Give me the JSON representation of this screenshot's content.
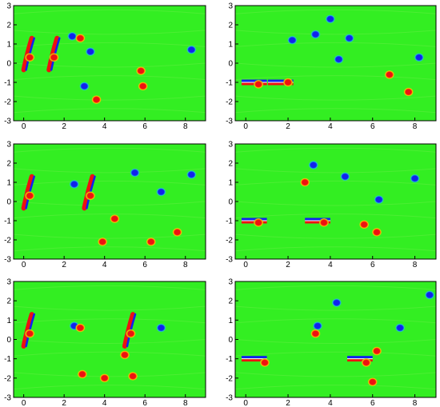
{
  "figure": {
    "panel_count": 6,
    "field_colors": {
      "background": "#33ee22",
      "positive_core": "#ee1111",
      "positive_edge": "#ffcc00",
      "negative_core": "#1122ee",
      "negative_edge": "#22cccc"
    },
    "x_tick_labels": [
      "0",
      "2",
      "4",
      "6",
      "8"
    ],
    "y_tick_labels": [
      "3",
      "2",
      "1",
      "0",
      "-1",
      "-2",
      "-3"
    ]
  },
  "chart_data": [
    {
      "type": "heatmap",
      "panel": "row1-left",
      "xlim": [
        -0.5,
        9
      ],
      "ylim": [
        -3,
        3
      ],
      "xticks": [
        0,
        2,
        4,
        6,
        8
      ],
      "yticks": [
        -3,
        -2,
        -1,
        0,
        1,
        2,
        3
      ],
      "plate_x": [
        0,
        1.25
      ],
      "vortices": [
        {
          "x": 0.3,
          "y": 0.3,
          "strength": 1
        },
        {
          "x": 1.5,
          "y": 0.3,
          "strength": 1
        },
        {
          "x": 2.4,
          "y": 1.4,
          "strength": -1
        },
        {
          "x": 2.8,
          "y": 1.3,
          "strength": 1
        },
        {
          "x": 3.3,
          "y": 0.6,
          "strength": -1
        },
        {
          "x": 3.0,
          "y": -1.2,
          "strength": -1
        },
        {
          "x": 3.6,
          "y": -1.9,
          "strength": 1
        },
        {
          "x": 5.8,
          "y": -0.4,
          "strength": 1
        },
        {
          "x": 5.9,
          "y": -1.2,
          "strength": 1
        },
        {
          "x": 8.3,
          "y": 0.7,
          "strength": -1
        }
      ]
    },
    {
      "type": "heatmap",
      "panel": "row1-right",
      "xlim": [
        -0.5,
        9
      ],
      "ylim": [
        -3,
        3
      ],
      "xticks": [
        0,
        2,
        4,
        6,
        8
      ],
      "yticks": [
        -3,
        -2,
        -1,
        0,
        1,
        2,
        3
      ],
      "plate_x": [
        0,
        1.25
      ],
      "vortices": [
        {
          "x": 0.6,
          "y": -1.1,
          "strength": 1
        },
        {
          "x": 2.0,
          "y": -1.0,
          "strength": 1
        },
        {
          "x": 2.2,
          "y": 1.2,
          "strength": -1
        },
        {
          "x": 3.3,
          "y": 1.5,
          "strength": -1
        },
        {
          "x": 4.0,
          "y": 2.3,
          "strength": -1
        },
        {
          "x": 4.4,
          "y": 0.2,
          "strength": -1
        },
        {
          "x": 4.9,
          "y": 1.3,
          "strength": -1
        },
        {
          "x": 6.8,
          "y": -0.6,
          "strength": 1
        },
        {
          "x": 7.7,
          "y": -1.5,
          "strength": 1
        },
        {
          "x": 8.2,
          "y": 0.3,
          "strength": -1
        }
      ]
    },
    {
      "type": "heatmap",
      "panel": "row2-left",
      "xlim": [
        -0.5,
        9
      ],
      "ylim": [
        -3,
        3
      ],
      "xticks": [
        0,
        2,
        4,
        6,
        8
      ],
      "yticks": [
        -3,
        -2,
        -1,
        0,
        1,
        2,
        3
      ],
      "plate_x": [
        0,
        3
      ],
      "vortices": [
        {
          "x": 0.3,
          "y": 0.3,
          "strength": 1
        },
        {
          "x": 3.3,
          "y": 0.3,
          "strength": 1
        },
        {
          "x": 2.5,
          "y": 0.9,
          "strength": -1
        },
        {
          "x": 5.5,
          "y": 1.5,
          "strength": -1
        },
        {
          "x": 4.5,
          "y": -0.9,
          "strength": 1
        },
        {
          "x": 3.9,
          "y": -2.1,
          "strength": 1
        },
        {
          "x": 6.3,
          "y": -2.1,
          "strength": 1
        },
        {
          "x": 6.8,
          "y": 0.5,
          "strength": -1
        },
        {
          "x": 8.3,
          "y": 1.4,
          "strength": -1
        },
        {
          "x": 7.6,
          "y": -1.6,
          "strength": 1
        }
      ]
    },
    {
      "type": "heatmap",
      "panel": "row2-right",
      "xlim": [
        -0.5,
        9
      ],
      "ylim": [
        -3,
        3
      ],
      "xticks": [
        0,
        2,
        4,
        6,
        8
      ],
      "yticks": [
        -3,
        -2,
        -1,
        0,
        1,
        2,
        3
      ],
      "plate_x": [
        0,
        3
      ],
      "vortices": [
        {
          "x": 0.6,
          "y": -1.1,
          "strength": 1
        },
        {
          "x": 3.7,
          "y": -1.1,
          "strength": 1
        },
        {
          "x": 2.8,
          "y": 1.0,
          "strength": 1
        },
        {
          "x": 5.6,
          "y": -1.2,
          "strength": 1
        },
        {
          "x": 3.2,
          "y": 1.9,
          "strength": -1
        },
        {
          "x": 4.7,
          "y": 1.3,
          "strength": -1
        },
        {
          "x": 6.3,
          "y": 0.1,
          "strength": -1
        },
        {
          "x": 8.0,
          "y": 1.2,
          "strength": -1
        },
        {
          "x": 6.2,
          "y": -1.6,
          "strength": 1
        }
      ]
    },
    {
      "type": "heatmap",
      "panel": "row3-left",
      "xlim": [
        -0.5,
        9
      ],
      "ylim": [
        -3,
        3
      ],
      "xticks": [
        0,
        2,
        4,
        6,
        8
      ],
      "yticks": [
        -3,
        -2,
        -1,
        0,
        1,
        2,
        3
      ],
      "plate_x": [
        0,
        5
      ],
      "vortices": [
        {
          "x": 0.3,
          "y": 0.3,
          "strength": 1
        },
        {
          "x": 5.3,
          "y": 0.3,
          "strength": 1
        },
        {
          "x": 2.5,
          "y": 0.7,
          "strength": -1
        },
        {
          "x": 2.8,
          "y": 0.6,
          "strength": 1
        },
        {
          "x": 5.0,
          "y": -0.8,
          "strength": 1
        },
        {
          "x": 6.8,
          "y": 0.6,
          "strength": -1
        },
        {
          "x": 4.0,
          "y": -2.0,
          "strength": 1
        },
        {
          "x": 5.4,
          "y": -1.9,
          "strength": 1
        },
        {
          "x": 2.9,
          "y": -1.8,
          "strength": 1
        }
      ]
    },
    {
      "type": "heatmap",
      "panel": "row3-right",
      "xlim": [
        -0.5,
        9
      ],
      "ylim": [
        -3,
        3
      ],
      "xticks": [
        0,
        2,
        4,
        6,
        8
      ],
      "yticks": [
        -3,
        -2,
        -1,
        0,
        1,
        2,
        3
      ],
      "plate_x": [
        0,
        5
      ],
      "vortices": [
        {
          "x": 0.9,
          "y": -1.2,
          "strength": 1
        },
        {
          "x": 5.7,
          "y": -1.2,
          "strength": 1
        },
        {
          "x": 3.4,
          "y": 0.7,
          "strength": -1
        },
        {
          "x": 3.3,
          "y": 0.3,
          "strength": 1
        },
        {
          "x": 4.3,
          "y": 1.9,
          "strength": -1
        },
        {
          "x": 6.2,
          "y": -0.6,
          "strength": 1
        },
        {
          "x": 7.3,
          "y": 0.6,
          "strength": -1
        },
        {
          "x": 8.7,
          "y": 2.3,
          "strength": -1
        },
        {
          "x": 6.0,
          "y": -2.2,
          "strength": 1
        }
      ]
    }
  ]
}
